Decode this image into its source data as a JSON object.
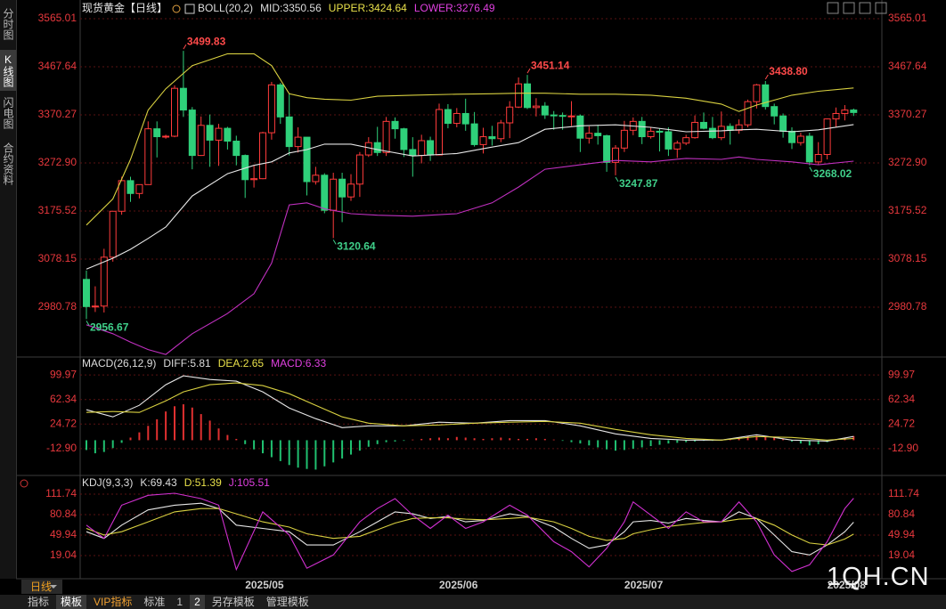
{
  "header": {
    "title": "现货黄金【日线】"
  },
  "sidebar": {
    "tabs": [
      "分时图",
      "K线图",
      "闪电图",
      "合约资料"
    ]
  },
  "toolbar": {
    "period": "日线",
    "buttons": [
      "指标",
      "模板",
      "VIP指标",
      "标准",
      "1",
      "2",
      "另存模板",
      "管理模板"
    ]
  },
  "watermark": "1QH.CN",
  "chart_data": [
    {
      "type": "candlestick",
      "up_color": "#ff3b3b",
      "down_color": "#2fd07a",
      "grid": true,
      "ylim": [
        2885.2,
        3584.8
      ],
      "yticks": [
        3565.01,
        3467.64,
        3370.27,
        {
          "value": 3272.9,
          "label": "3272.90"
        },
        3175.52,
        3078.15,
        2980.78
      ],
      "legend": [
        {
          "text": "BOLL(20,2)",
          "color": "#dddddd"
        },
        {
          "text": "MID:3350.56",
          "color": "#dddddd"
        },
        {
          "text": "UPPER:3424.64",
          "color": "#e8e04a"
        },
        {
          "text": "LOWER:3276.49",
          "color": "#e040e0"
        }
      ],
      "categories": [
        null,
        null,
        null,
        null,
        null,
        null,
        null,
        null,
        null,
        null,
        null,
        null,
        null,
        null,
        null,
        null,
        null,
        null,
        "2025/05",
        null,
        null,
        null,
        null,
        null,
        null,
        null,
        null,
        null,
        null,
        null,
        null,
        null,
        null,
        null,
        null,
        null,
        null,
        null,
        null,
        null,
        "2025/06",
        null,
        null,
        null,
        null,
        null,
        null,
        null,
        null,
        null,
        null,
        null,
        null,
        null,
        null,
        null,
        null,
        null,
        null,
        null,
        null,
        "2025/07",
        null,
        null,
        null,
        null,
        null,
        null,
        null,
        null,
        null,
        null,
        null,
        null,
        null,
        null,
        null,
        null,
        null,
        null,
        null,
        null,
        null,
        null,
        "2025/08",
        null,
        null,
        null
      ],
      "open": [
        3037,
        2982,
        2983,
        3082,
        3175,
        3237,
        3211,
        3229,
        3342,
        3326,
        3327,
        3424,
        3380,
        3288,
        3349,
        3319,
        3343,
        3317,
        3288,
        3239,
        3241,
        3334,
        3431,
        3366,
        3306,
        3325,
        3235,
        3248,
        3177,
        3240,
        3204,
        3230,
        3289,
        3314,
        3294,
        3357,
        3342,
        3300,
        3288,
        3318,
        3289,
        3381,
        3353,
        3373,
        3352,
        3310,
        3326,
        3322,
        3354,
        3386,
        3433,
        3385,
        3388,
        3370,
        3369,
        3368,
        3368,
        3323,
        3333,
        3328,
        3274,
        3303,
        3339,
        3357,
        3326,
        3337,
        3336,
        3301,
        3313,
        3324,
        3355,
        3343,
        3324,
        3347,
        3339,
        3350,
        3397,
        3431,
        3387,
        3368,
        3337,
        3314,
        3327,
        3275,
        3290,
        3362,
        3373,
        3380
      ],
      "high": [
        3055,
        3023,
        3099,
        3175,
        3245,
        3245,
        3229,
        3357,
        3357,
        3330,
        3430,
        3499.83,
        3386,
        3367,
        3371,
        3352,
        3346,
        3328,
        3290,
        3269,
        3336,
        3437,
        3435,
        3413,
        3345,
        3325,
        3265,
        3252,
        3253,
        3253,
        3250,
        3295,
        3325,
        3346,
        3366,
        3365,
        3344,
        3325,
        3330,
        3326,
        3393,
        3392,
        3384,
        3403,
        3376,
        3344,
        3348,
        3360,
        3398,
        3446,
        3451.14,
        3404,
        3396,
        3378,
        3375,
        3398,
        3371,
        3347,
        3350,
        3330,
        3309,
        3358,
        3365,
        3366,
        3345,
        3343,
        3345,
        3318,
        3330,
        3369,
        3375,
        3366,
        3377,
        3353,
        3361,
        3401,
        3433,
        3438.8,
        3393,
        3373,
        3345,
        3334,
        3334,
        3315,
        3363,
        3385,
        3390,
        3383
      ],
      "low": [
        2956.67,
        2971,
        2970,
        3073,
        3168,
        3194,
        3201,
        3229,
        3284,
        3322,
        3325,
        3366,
        3260,
        3287,
        3265,
        3267,
        3300,
        3268,
        3202,
        3223,
        3240,
        3320,
        3352,
        3288,
        3294,
        3207,
        3229,
        3171,
        3120.64,
        3153,
        3196,
        3204,
        3285,
        3287,
        3287,
        3322,
        3285,
        3245,
        3272,
        3277,
        3289,
        3343,
        3345,
        3338,
        3306,
        3292,
        3308,
        3315,
        3323,
        3384,
        3382,
        3367,
        3362,
        3340,
        3340,
        3348,
        3295,
        3312,
        3310,
        3255,
        3247.87,
        3295,
        3329,
        3311,
        3322,
        3296,
        3287,
        3283,
        3309,
        3322,
        3341,
        3321,
        3319,
        3310,
        3332,
        3345,
        3383,
        3381,
        3351,
        3324,
        3301,
        3308,
        3268.02,
        3270,
        3280,
        3345,
        3359,
        3368
      ],
      "close": [
        2982,
        2983,
        3082,
        3175,
        3237,
        3211,
        3229,
        3342,
        3326,
        3327,
        3424,
        3380,
        3288,
        3349,
        3319,
        3343,
        3317,
        3288,
        3239,
        3241,
        3334,
        3431,
        3366,
        3306,
        3325,
        3235,
        3248,
        3177,
        3240,
        3204,
        3230,
        3289,
        3314,
        3294,
        3357,
        3342,
        3300,
        3288,
        3318,
        3289,
        3381,
        3353,
        3373,
        3352,
        3310,
        3326,
        3322,
        3354,
        3386,
        3433,
        3385,
        3388,
        3370,
        3369,
        3368,
        3368,
        3323,
        3333,
        3328,
        3274,
        3303,
        3339,
        3357,
        3326,
        3337,
        3336,
        3301,
        3313,
        3324,
        3355,
        3343,
        3324,
        3347,
        3339,
        3350,
        3397,
        3431,
        3387,
        3368,
        3337,
        3314,
        3327,
        3275,
        3290,
        3362,
        3373,
        3380,
        3375
      ],
      "lines": {
        "x": [
          0,
          3,
          5,
          7,
          9,
          12,
          16,
          19,
          21,
          23,
          25,
          27,
          30,
          33,
          37,
          42,
          46,
          49,
          52,
          56,
          60,
          64,
          68,
          72,
          74,
          76,
          80,
          83,
          87
        ],
        "series": [
          {
            "name": "UPPER",
            "color": "#d8d040",
            "values": [
              3147,
              3200,
              3280,
              3380,
              3423,
              3470,
              3494,
              3494,
              3470,
              3413,
              3405,
              3402,
              3400,
              3408,
              3410,
              3412,
              3413,
              3414,
              3414,
              3412,
              3412,
              3410,
              3404,
              3392,
              3377,
              3390,
              3410,
              3418,
              3424.64
            ]
          },
          {
            "name": "MID",
            "color": "#e6e6e6",
            "values": [
              3058,
              3080,
              3098,
              3120,
              3143,
              3206,
              3251,
              3268,
              3275,
              3293,
              3300,
              3311,
              3311,
              3300,
              3287,
              3292,
              3305,
              3314,
              3341,
              3348,
              3350,
              3345,
              3336,
              3338,
              3340,
              3341,
              3336,
              3340,
              3350.56
            ]
          },
          {
            "name": "LOWER",
            "color": "#c030c0",
            "values": [
              2945,
              2927,
              2910,
              2895,
              2885,
              2927,
              2968,
              3008,
              3070,
              3188,
              3192,
              3180,
              3170,
              3167,
              3165,
              3170,
              3192,
              3224,
              3260,
              3269,
              3278,
              3275,
              3282,
              3280,
              3285,
              3280,
              3275,
              3269,
              3276.49
            ]
          }
        ]
      },
      "annotations": [
        {
          "index": 11,
          "of": "high",
          "label": "3499.83",
          "color": "#ff4a4a"
        },
        {
          "index": 0,
          "of": "low",
          "label": "2956.67",
          "color": "#40d08a"
        },
        {
          "index": 28,
          "of": "low",
          "label": "3120.64",
          "color": "#40d08a"
        },
        {
          "index": 50,
          "of": "high",
          "label": "3451.14",
          "color": "#ff4a4a"
        },
        {
          "index": 60,
          "of": "low",
          "label": "3247.87",
          "color": "#40d08a"
        },
        {
          "index": 77,
          "of": "high",
          "label": "3438.80",
          "color": "#ff4a4a"
        },
        {
          "index": 82,
          "of": "low",
          "label": "3268.02",
          "color": "#40d08a"
        }
      ]
    },
    {
      "type": "macd",
      "grid": true,
      "ylim": [
        -48.5,
        121.9
      ],
      "yticks": [
        99.97,
        62.34,
        24.72,
        {
          "value": -12.9,
          "label": "-12.90"
        }
      ],
      "legend": [
        {
          "text": "MACD(26,12,9)",
          "color": "#dddddd"
        },
        {
          "text": "DIFF:5.81",
          "color": "#dddddd"
        },
        {
          "text": "DEA:2.65",
          "color": "#e8e04a"
        },
        {
          "text": "MACD:6.33",
          "color": "#e040e0"
        }
      ],
      "histogram": {
        "up_color": "#e03030",
        "down_color": "#20c070",
        "values": [
          -15,
          -20,
          -18,
          -12,
          -4,
          4,
          12,
          22,
          32,
          44,
          52,
          55,
          50,
          40,
          30,
          18,
          8,
          2,
          -6,
          -14,
          -20,
          -26,
          -32,
          -38,
          -42,
          -44,
          -45,
          -40,
          -34,
          -28,
          -22,
          -16,
          -10,
          -6,
          -3,
          -2,
          -1,
          1,
          2,
          3,
          4,
          3,
          5,
          4,
          3,
          2,
          3,
          4,
          3,
          2,
          2,
          3,
          2,
          1,
          -1,
          -3,
          -5,
          -8,
          -11,
          -14,
          -16,
          -15,
          -13,
          -11,
          -9,
          -7,
          -5,
          -4,
          -3,
          -2,
          -1,
          -1,
          1,
          2,
          4,
          6,
          7,
          6,
          4,
          2,
          -2,
          -5,
          -8,
          -6,
          -3,
          1,
          4,
          6.33
        ]
      },
      "lines": {
        "x": [
          0,
          3,
          6,
          9,
          11,
          14,
          17,
          20,
          23,
          26,
          29,
          32,
          36,
          40,
          44,
          48,
          52,
          56,
          60,
          64,
          68,
          72,
          76,
          80,
          84,
          87
        ],
        "series": [
          {
            "name": "DIFF",
            "color": "#e6e6e6",
            "values": [
              46.6,
              35.7,
              53.5,
              85,
              98.6,
              93,
              90.4,
              74,
              49.4,
              33,
              19.3,
              22,
              22,
              27.5,
              26,
              30,
              30,
              22,
              9.7,
              2.8,
              0.1,
              0.1,
              8.3,
              0.1,
              -1.3,
              5.81
            ]
          },
          {
            "name": "DEA",
            "color": "#d8d040",
            "values": [
              42.5,
              43.9,
              42.5,
              60.3,
              74,
              85,
              87.7,
              83.6,
              71.2,
              53.5,
              35.7,
              26,
              22,
              23.4,
              26,
              27.5,
              28.8,
              26,
              16.5,
              8.3,
              2.8,
              0.1,
              5.6,
              4.2,
              0.1,
              2.65
            ]
          }
        ]
      }
    },
    {
      "type": "kdj",
      "grid": true,
      "ylim": [
        -15.9,
        135.9
      ],
      "yticks": [
        111.74,
        80.84,
        49.94,
        19.04
      ],
      "legend": [
        {
          "text": "KDJ(9,3,3)",
          "color": "#dddddd"
        },
        {
          "text": "K:69.43",
          "color": "#dddddd"
        },
        {
          "text": "D:51.39",
          "color": "#e8e04a"
        },
        {
          "text": "J:105.51",
          "color": "#e040e0"
        }
      ],
      "lines": {
        "x": [
          0,
          2,
          4,
          7,
          10,
          13,
          15,
          17,
          20,
          23,
          25,
          28,
          31,
          33,
          35,
          37,
          39,
          41,
          43,
          45,
          48,
          50,
          53,
          55,
          57,
          59,
          61,
          62,
          64,
          66,
          68,
          70,
          72,
          74,
          76,
          78,
          80,
          82,
          84,
          86,
          87
        ],
        "series": [
          {
            "name": "K",
            "color": "#e6e6e6",
            "values": [
              55,
              45,
              65,
              88,
              95,
              98,
              90,
              65,
              60,
              55,
              35,
              35,
              55,
              70,
              85,
              82,
              75,
              78,
              70,
              72,
              82,
              78,
              62,
              45,
              30,
              35,
              55,
              70,
              72,
              68,
              75,
              72,
              70,
              85,
              75,
              50,
              25,
              20,
              35,
              55,
              69.43
            ]
          },
          {
            "name": "D",
            "color": "#d8d040",
            "values": [
              60,
              50,
              55,
              70,
              85,
              90,
              90,
              82,
              70,
              62,
              52,
              45,
              48,
              58,
              68,
              75,
              76,
              76,
              74,
              73,
              75,
              77,
              70,
              60,
              48,
              42,
              45,
              52,
              58,
              63,
              66,
              69,
              70,
              74,
              75,
              65,
              50,
              38,
              35,
              44,
              51.39
            ]
          },
          {
            "name": "J",
            "color": "#d030d0",
            "values": [
              65,
              45,
              95,
              110,
              113,
              105,
              95,
              -2,
              85,
              50,
              0,
              20,
              70,
              90,
              105,
              80,
              60,
              80,
              60,
              70,
              95,
              80,
              40,
              25,
              2,
              30,
              70,
              100,
              80,
              60,
              85,
              70,
              70,
              100,
              70,
              20,
              -5,
              5,
              40,
              90,
              105.51
            ]
          }
        ]
      }
    }
  ]
}
